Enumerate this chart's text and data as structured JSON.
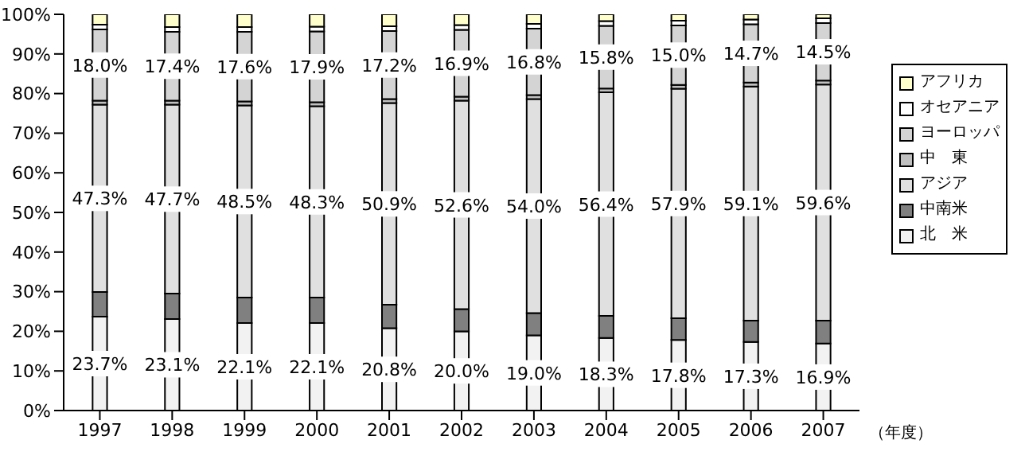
{
  "chart_data": {
    "type": "bar",
    "stacked": true,
    "xlabel": "（年度）",
    "categories": [
      "1997",
      "1998",
      "1999",
      "2000",
      "2001",
      "2002",
      "2003",
      "2004",
      "2005",
      "2006",
      "2007"
    ],
    "ylim": [
      0,
      100
    ],
    "yticks": [
      {
        "value": 0,
        "label": "0%"
      },
      {
        "value": 10,
        "label": "10%"
      },
      {
        "value": 20,
        "label": "20%"
      },
      {
        "value": 30,
        "label": "30%"
      },
      {
        "value": 40,
        "label": "40%"
      },
      {
        "value": 50,
        "label": "50%"
      },
      {
        "value": 60,
        "label": "60%"
      },
      {
        "value": 70,
        "label": "70%"
      },
      {
        "value": 80,
        "label": "80%"
      },
      {
        "value": 90,
        "label": "90%"
      },
      {
        "value": 100,
        "label": "100%"
      }
    ],
    "grid": false,
    "legend": "right",
    "series": [
      {
        "name": "北　米",
        "color": "#f2f2f2",
        "values": [
          23.7,
          23.1,
          22.1,
          22.1,
          20.8,
          20.0,
          19.0,
          18.3,
          17.8,
          17.3,
          16.9
        ],
        "value_labels": [
          "23.7%",
          "23.1%",
          "22.1%",
          "22.1%",
          "20.8%",
          "20.0%",
          "19.0%",
          "18.3%",
          "17.8%",
          "17.3%",
          "16.9%"
        ]
      },
      {
        "name": "中南米",
        "color": "#808080",
        "values": [
          6.2,
          6.4,
          6.4,
          6.4,
          5.9,
          5.6,
          5.6,
          5.6,
          5.5,
          5.4,
          5.8
        ]
      },
      {
        "name": "アジア",
        "color": "#e0e0e0",
        "values": [
          47.3,
          47.7,
          48.5,
          48.3,
          50.9,
          52.6,
          54.0,
          56.4,
          57.9,
          59.1,
          59.6
        ],
        "value_labels": [
          "47.3%",
          "47.7%",
          "48.5%",
          "48.3%",
          "50.9%",
          "52.6%",
          "54.0%",
          "56.4%",
          "57.9%",
          "59.1%",
          "59.6%"
        ]
      },
      {
        "name": "中　東",
        "color": "#c0c0c0",
        "values": [
          1.0,
          1.0,
          1.0,
          1.0,
          1.0,
          1.0,
          1.0,
          1.0,
          1.0,
          1.0,
          1.0
        ]
      },
      {
        "name": "ヨーロッパ",
        "color": "#d4d4d4",
        "values": [
          18.0,
          17.4,
          17.6,
          17.9,
          17.2,
          16.9,
          16.8,
          15.8,
          15.0,
          14.7,
          14.5
        ],
        "value_labels": [
          "18.0%",
          "17.4%",
          "17.6%",
          "17.9%",
          "17.2%",
          "16.9%",
          "16.8%",
          "15.8%",
          "15.0%",
          "14.7%",
          "14.5%"
        ]
      },
      {
        "name": "オセアニア",
        "color": "#ffffff",
        "values": [
          1.2,
          1.2,
          1.2,
          1.2,
          1.2,
          1.2,
          1.2,
          1.2,
          1.2,
          1.2,
          1.2
        ]
      },
      {
        "name": "アフリカ",
        "color": "#ffffcc",
        "values": [
          2.6,
          3.2,
          3.2,
          3.1,
          3.0,
          2.7,
          2.4,
          1.7,
          1.6,
          1.3,
          1.0
        ]
      }
    ]
  }
}
